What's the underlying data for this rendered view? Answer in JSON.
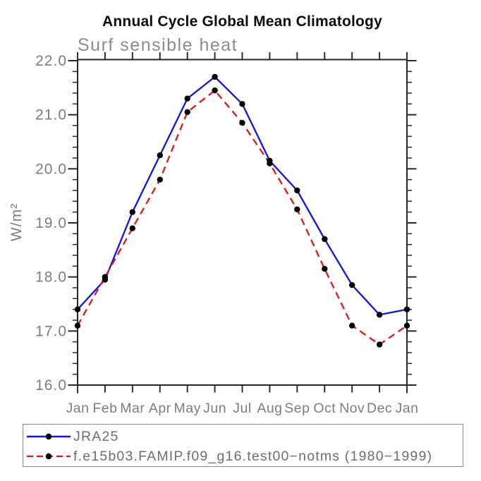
{
  "page": {
    "background": "#ffffff"
  },
  "colors": {
    "axis": "#262626",
    "tick_label_gray": "#7d7d7d",
    "subtitle_gray": "#8c8c8c",
    "legend_text_gray": "#6e6e6e",
    "legend_border": "#8a8a8a",
    "title_black": "#0d0d0d",
    "series_blue": "#1111ee",
    "series_red": "#ee1111",
    "marker_black": "#000000"
  },
  "chart_data": {
    "type": "line",
    "title": "Annual Cycle Global Mean Climatology",
    "subtitle": "Surf sensible heat",
    "ylabel": "W/m²",
    "xlabel": "",
    "categories": [
      "Jan",
      "Feb",
      "Mar",
      "Apr",
      "May",
      "Jun",
      "Jul",
      "Aug",
      "Sep",
      "Oct",
      "Nov",
      "Dec",
      "Jan"
    ],
    "ytick_values": [
      16,
      17,
      18,
      19,
      20,
      21,
      22
    ],
    "ytick_labels": [
      "16.0",
      "17.0",
      "18.0",
      "19.0",
      "20.0",
      "21.0",
      "22.0"
    ],
    "ylim": [
      16.0,
      22.02
    ],
    "minor_tick_step": 0.2,
    "grid": false,
    "legend_position": "bottom",
    "series": [
      {
        "name": "JRA25",
        "line_style": "solid",
        "color_key": "series_blue",
        "marker": "black-dot",
        "values": [
          17.4,
          17.95,
          19.2,
          20.25,
          21.3,
          21.7,
          21.2,
          20.15,
          19.6,
          18.7,
          17.85,
          17.3,
          17.4
        ]
      },
      {
        "name": "f.e15b03.FAMIP.f09_g16.test00−notms (1980−1999)",
        "line_style": "dashed",
        "color_key": "series_red",
        "marker": "black-dot",
        "values": [
          17.1,
          18.0,
          18.9,
          19.8,
          21.05,
          21.45,
          20.85,
          20.1,
          19.25,
          18.15,
          17.1,
          16.75,
          17.1
        ]
      }
    ]
  }
}
